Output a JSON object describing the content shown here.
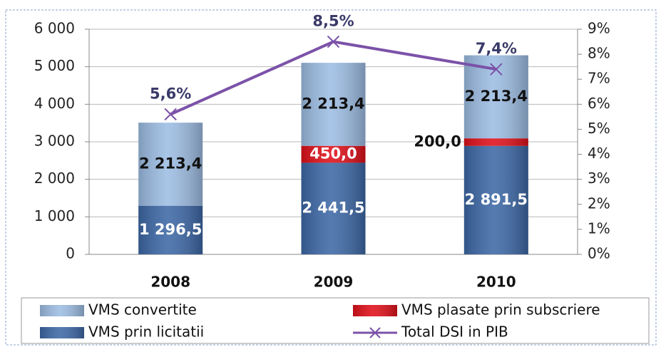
{
  "chart_data": {
    "type": "bar",
    "stacked": true,
    "categories": [
      "2008",
      "2009",
      "2010"
    ],
    "series": [
      {
        "name": "VMS prin licitatii",
        "color": "#3d68a6",
        "values": [
          1296.5,
          2441.5,
          2891.5
        ],
        "value_labels": [
          "1 296,5",
          "2 441,5",
          "2 891,5"
        ]
      },
      {
        "name": "VMS plasate prin subscriere",
        "color": "#e0101a",
        "values": [
          null,
          450,
          200
        ],
        "value_labels": [
          null,
          "450,0",
          "200,0"
        ]
      },
      {
        "name": "VMS convertite",
        "color": "#9dbde3",
        "values": [
          2213.4,
          2213.4,
          2213.4
        ],
        "value_labels": [
          "2 213,4",
          "2 213,4",
          "2 213,4"
        ]
      },
      {
        "name": "Total DSI in PIB",
        "type": "line",
        "axis": "y2",
        "color": "#7b52a8",
        "values": [
          5.6,
          8.5,
          7.4
        ],
        "value_labels": [
          "5,6%",
          "8,5%",
          "7,4%"
        ]
      }
    ],
    "ylim": [
      0,
      6000
    ],
    "yticks": [
      0,
      {
        "value": 1000,
        "label": "1 000"
      },
      {
        "value": 2000,
        "label": "2 000"
      },
      {
        "value": 3000,
        "label": "3 000"
      },
      {
        "value": 4000,
        "label": "4 000"
      },
      {
        "value": 5000,
        "label": "5 000"
      },
      {
        "value": 6000,
        "label": "6 000"
      }
    ],
    "y2lim": [
      0,
      9
    ],
    "y2ticks": [
      {
        "value": 0,
        "label": "0%"
      },
      {
        "value": 1,
        "label": "1%"
      },
      {
        "value": 2,
        "label": "2%"
      },
      {
        "value": 3,
        "label": "3%"
      },
      {
        "value": 4,
        "label": "4%"
      },
      {
        "value": 5,
        "label": "5%"
      },
      {
        "value": 6,
        "label": "6%"
      },
      {
        "value": 7,
        "label": "7%"
      },
      {
        "value": 8,
        "label": "8%"
      },
      {
        "value": 9,
        "label": "9%"
      }
    ],
    "grid": true,
    "legend": "bottom"
  }
}
